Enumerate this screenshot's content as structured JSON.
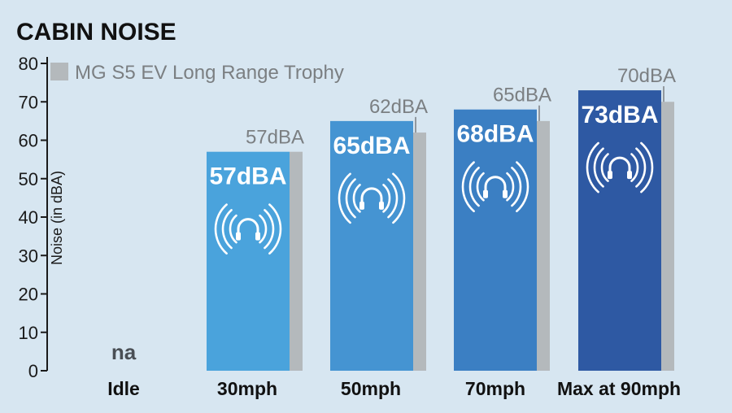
{
  "colors": {
    "background": "#d7e6f1",
    "title": "#111111",
    "axis": "#1a1a1a",
    "compare_bar": "#b4b9bc",
    "compare_label": "#7b7f82",
    "main_bars": [
      "#4aa3dc",
      "#4594d2",
      "#3b7fc3",
      "#2e59a3"
    ]
  },
  "chart_data": {
    "type": "bar",
    "title": "CABIN NOISE",
    "ylabel": "Noise (in dBA)",
    "xlabel": "",
    "ylim": [
      0,
      80
    ],
    "yticks": [
      0,
      10,
      20,
      30,
      40,
      50,
      60,
      70,
      80
    ],
    "grid": false,
    "legend_position": "top-left",
    "categories": [
      "Idle",
      "30mph",
      "50mph",
      "70mph",
      "Max at 90mph"
    ],
    "series": [
      {
        "values": [
          null,
          57,
          65,
          68,
          73
        ],
        "labels": [
          "na",
          "57dBA",
          "65dBA",
          "68dBA",
          "73dBA"
        ],
        "icon": "headphones-sound-icon"
      },
      {
        "name": "MG S5 EV Long Range Trophy",
        "values": [
          null,
          57,
          62,
          65,
          70
        ],
        "labels": [
          "",
          "57dBA",
          "62dBA",
          "65dBA",
          "70dBA"
        ]
      }
    ]
  }
}
